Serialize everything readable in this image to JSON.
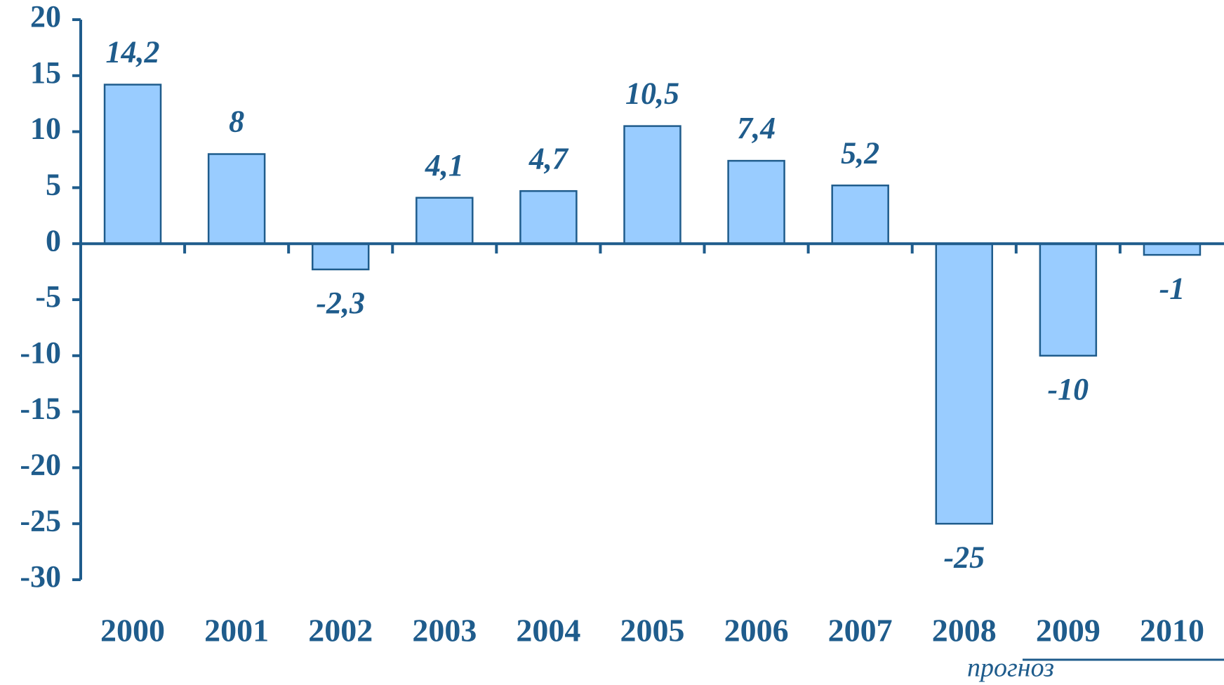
{
  "chart_data": {
    "type": "bar",
    "categories": [
      "2000",
      "2001",
      "2002",
      "2003",
      "2004",
      "2005",
      "2006",
      "2007",
      "2008",
      "2009",
      "2010"
    ],
    "values": [
      14.2,
      8,
      -2.3,
      4.1,
      4.7,
      10.5,
      7.4,
      5.2,
      -25,
      -10,
      -1
    ],
    "value_labels": [
      "14,2",
      "8",
      "-2,3",
      "4,1",
      "4,7",
      "10,5",
      "7,4",
      "5,2",
      "-25",
      "-10",
      "-1"
    ],
    "color": "#99ccff",
    "ylim": [
      -30,
      20
    ],
    "yticks": [
      20,
      15,
      10,
      5,
      0,
      -5,
      -10,
      -15,
      -20,
      -25,
      -30
    ],
    "grid": false,
    "annotation": "прогноз"
  }
}
